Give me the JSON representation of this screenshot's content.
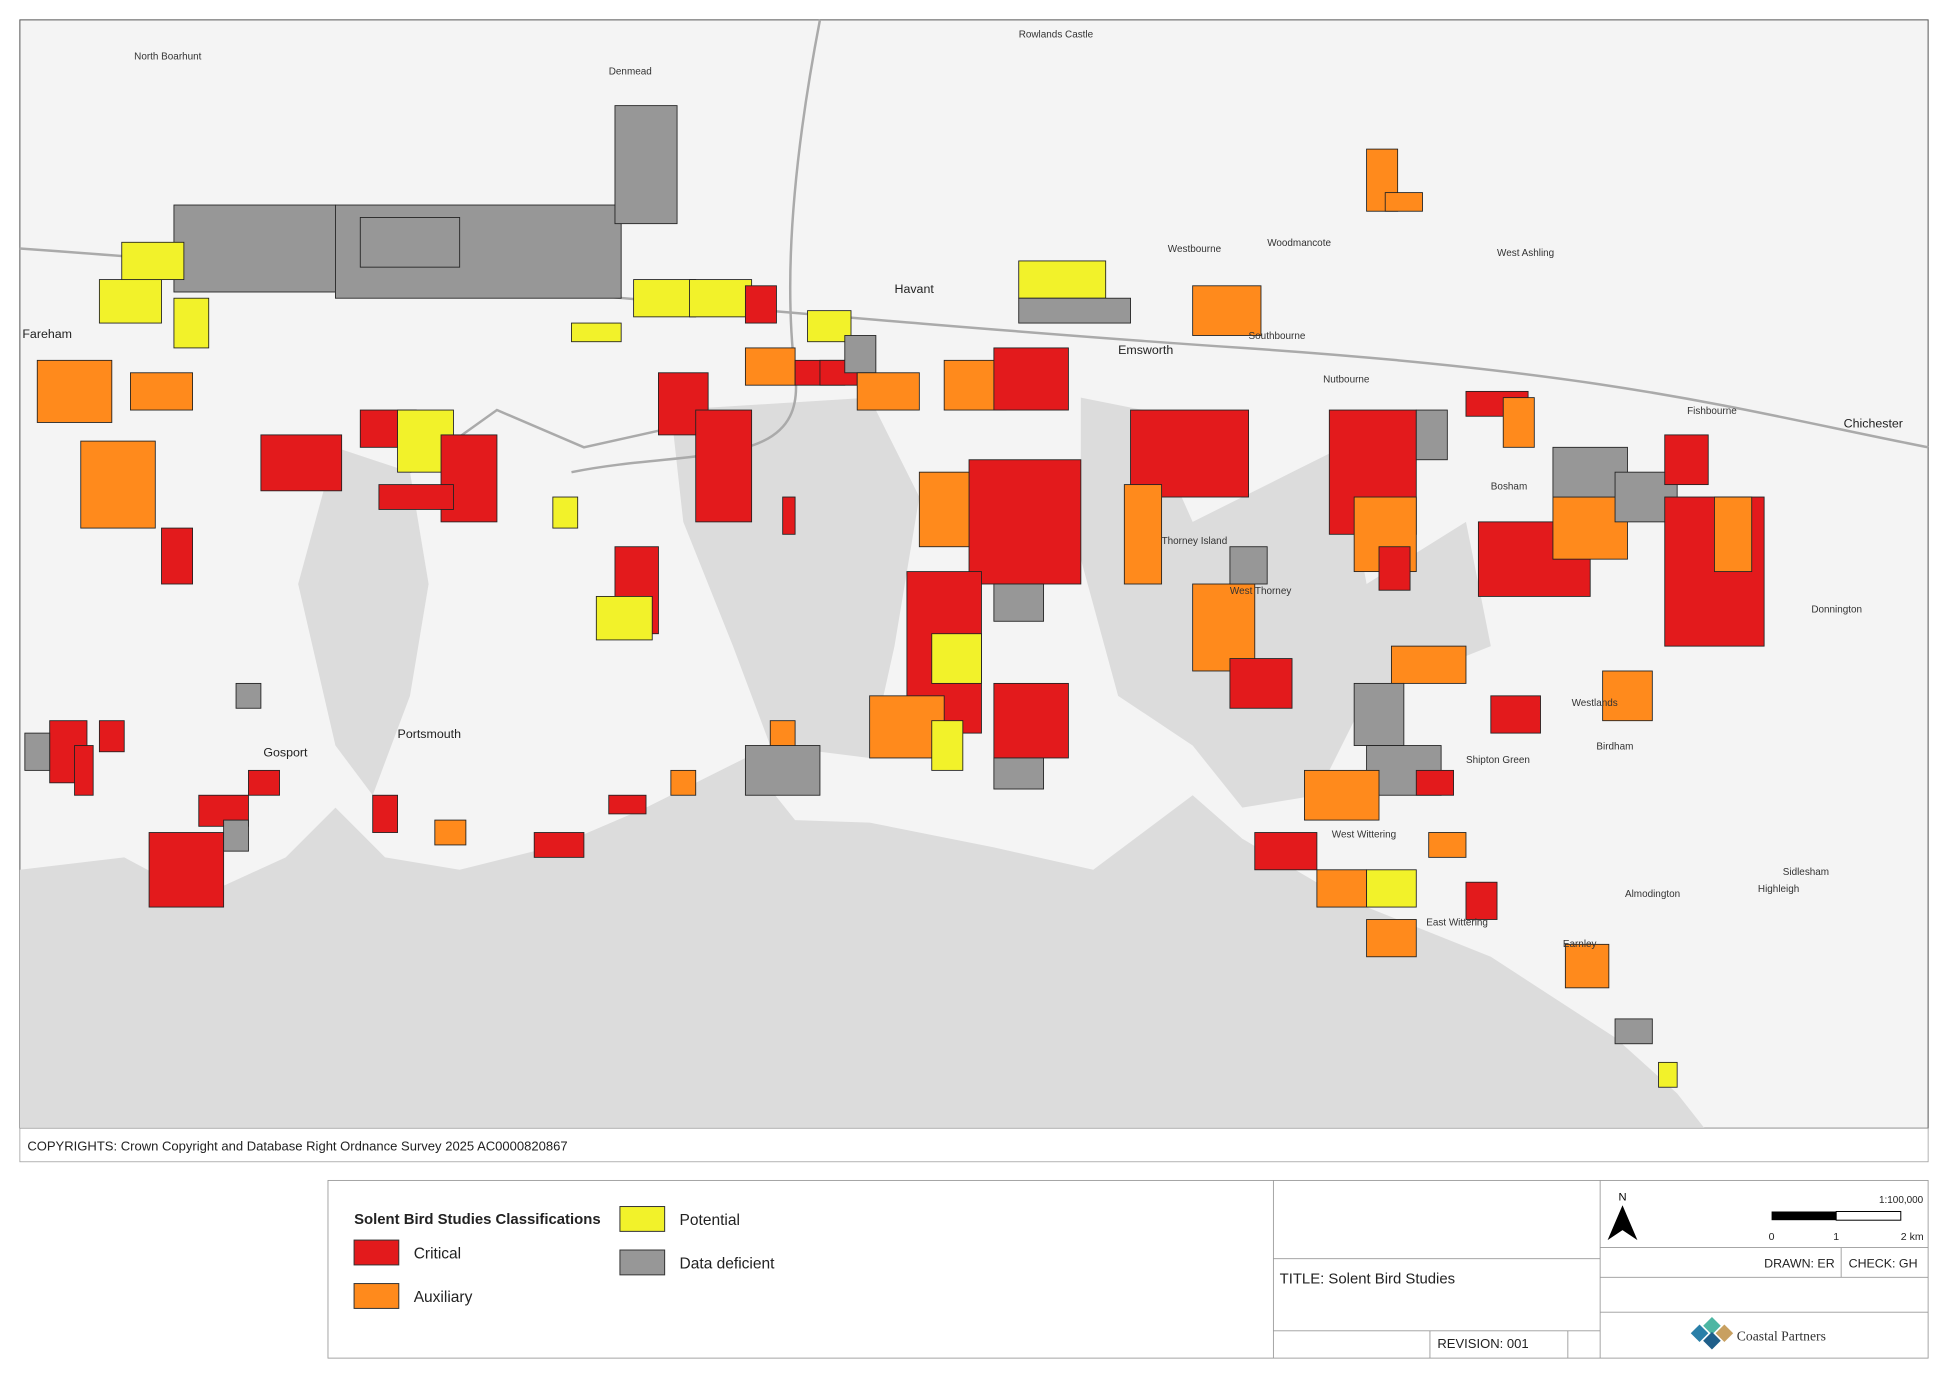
{
  "map": {
    "places": [
      "Havant",
      "Emsworth",
      "Chichester",
      "Fareham",
      "Gosport",
      "Portsmouth",
      "Thorney Island",
      "West Thorney",
      "Bosham",
      "Southbourne",
      "Westbourne",
      "West Wittering",
      "East Wittering",
      "Birdham",
      "Donnington",
      "Fishbourne",
      "Sidlesham",
      "North Boarhunt",
      "Denmead",
      "Rowlands Castle",
      "West Ashling",
      "Woodmancote",
      "Nutbourne",
      "Westlands",
      "Shipton Green",
      "Almodington",
      "Highleigh",
      "Earnley"
    ],
    "copyright": "COPYRIGHTS: Crown Copyright and Database Right Ordnance Survey 2025 AC0000820867"
  },
  "legend": {
    "title": "Solent Bird Studies Classifications",
    "items": [
      {
        "label": "Critical",
        "color": "#e31a1c"
      },
      {
        "label": "Auxiliary",
        "color": "#ff8a1c"
      },
      {
        "label": "Potential",
        "color": "#f2f22a"
      },
      {
        "label": "Data deficient",
        "color": "#979797"
      }
    ]
  },
  "title_block": {
    "title": "TITLE: Solent Bird Studies",
    "revision": "REVISION: 001",
    "drawn": "DRAWN: ER",
    "check": "CHECK: GH",
    "scale": "1:100,000",
    "scale_ticks": [
      "0",
      "1",
      "2 km"
    ],
    "north": "N",
    "logo": "Coastal Partners"
  }
}
